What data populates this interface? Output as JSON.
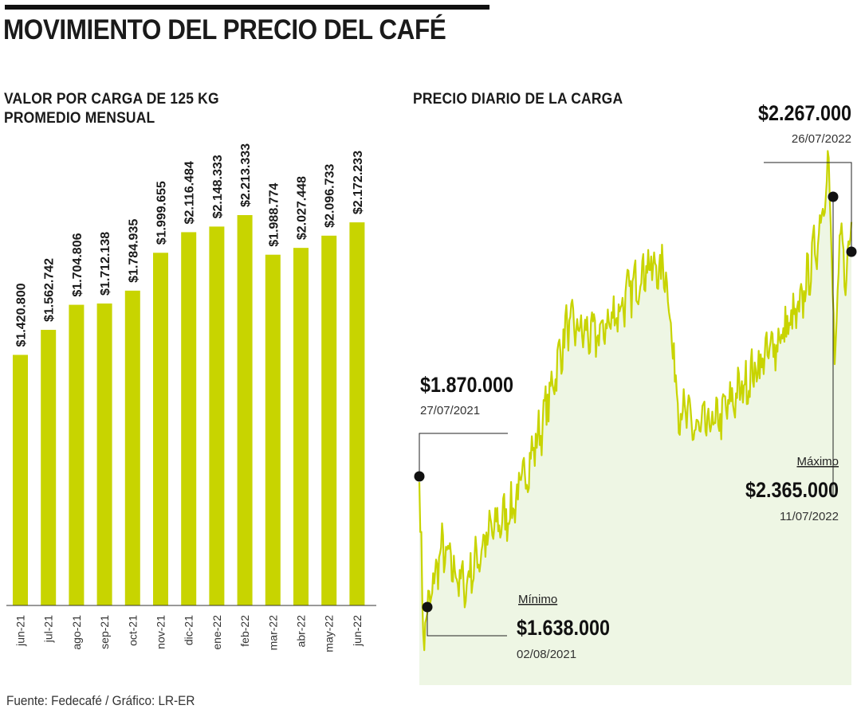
{
  "title": "MOVIMIENTO DEL PRECIO DEL CAFÉ",
  "left_subtitle_line1": "VALOR POR CARGA DE 125 KG",
  "left_subtitle_line2": "PROMEDIO MENSUAL",
  "right_subtitle": "PRECIO DIARIO DE LA CARGA",
  "source": "Fuente: Fedecafé / Gráfico: LR-ER",
  "colors": {
    "bar": "#c8d400",
    "line": "#c8d400",
    "area": "#eef6e4",
    "text": "#1a1a1a"
  },
  "chart_data": [
    {
      "type": "bar",
      "title": "VALOR POR CARGA DE 125 KG PROMEDIO MENSUAL",
      "categories": [
        "jun-21",
        "jul-21",
        "ago-21",
        "sep-21",
        "oct-21",
        "nov-21",
        "dic-21",
        "ene-22",
        "feb-22",
        "mar-22",
        "abr-22",
        "may-22",
        "jun-22"
      ],
      "values": [
        1420800,
        1562742,
        1704806,
        1712138,
        1784935,
        1999655,
        2116484,
        2148333,
        2213333,
        1988774,
        2027448,
        2096733,
        2172233
      ],
      "labels": [
        "$1.420.800",
        "$1.562.742",
        "$1.704.806",
        "$1.712.138",
        "$1.784.935",
        "$1.999.655",
        "$2.116.484",
        "$2.148.333",
        "$2.213.333",
        "$1.988.774",
        "$2.027.448",
        "$2.096.733",
        "$2.172.233"
      ],
      "xlabel": "",
      "ylabel": "",
      "ylim": [
        0,
        2213333
      ]
    },
    {
      "type": "area",
      "title": "PRECIO DIARIO DE LA CARGA",
      "ylim": [
        1560000,
        2460000
      ],
      "key_points": [
        {
          "x": 0,
          "y": 1870000
        },
        {
          "x": 4,
          "y": 1638000
        },
        {
          "x": 22,
          "y": 1770000
        },
        {
          "x": 45,
          "y": 1710000
        },
        {
          "x": 70,
          "y": 1790000
        },
        {
          "x": 95,
          "y": 1830000
        },
        {
          "x": 125,
          "y": 1960000
        },
        {
          "x": 150,
          "y": 2110000
        },
        {
          "x": 180,
          "y": 2090000
        },
        {
          "x": 205,
          "y": 2140000
        },
        {
          "x": 230,
          "y": 2200000
        },
        {
          "x": 250,
          "y": 2190000
        },
        {
          "x": 262,
          "y": 1990000
        },
        {
          "x": 280,
          "y": 1950000
        },
        {
          "x": 300,
          "y": 1960000
        },
        {
          "x": 330,
          "y": 2020000
        },
        {
          "x": 360,
          "y": 2080000
        },
        {
          "x": 385,
          "y": 2130000
        },
        {
          "x": 405,
          "y": 2250000
        },
        {
          "x": 415,
          "y": 2365000
        },
        {
          "x": 421,
          "y": 2050000
        },
        {
          "x": 427,
          "y": 2250000
        },
        {
          "x": 433,
          "y": 2180000
        },
        {
          "x": 438,
          "y": 2267000
        }
      ],
      "annotations": [
        {
          "label": "",
          "value": "$1.870.000",
          "date": "27/07/2021"
        },
        {
          "label": "Mínimo",
          "value": "$1.638.000",
          "date": "02/08/2021"
        },
        {
          "label": "Máximo",
          "value": "$2.365.000",
          "date": "11/07/2022"
        },
        {
          "label": "",
          "value": "$2.267.000",
          "date": "26/07/2022"
        }
      ]
    }
  ]
}
